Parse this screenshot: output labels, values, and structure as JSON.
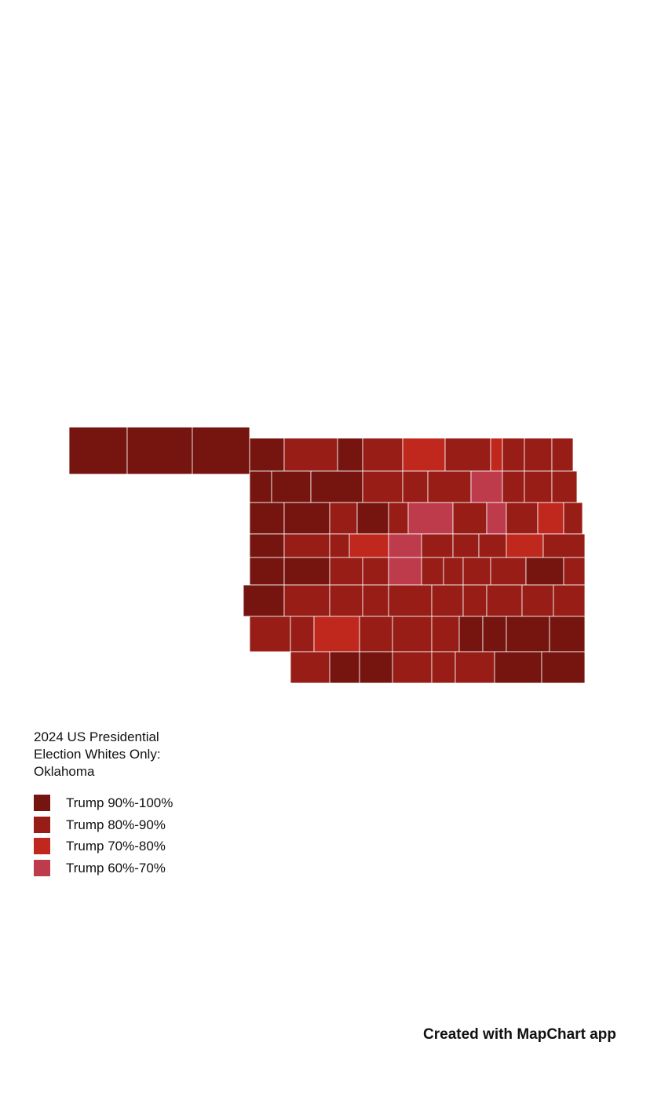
{
  "title": "2024 US Presidential Election Whites Only: Oklahoma",
  "legend": {
    "items": [
      {
        "label": "Trump 90%-100%",
        "color": "#761510"
      },
      {
        "label": "Trump 80%-90%",
        "color": "#971d16"
      },
      {
        "label": "Trump 70%-80%",
        "color": "#c0281e"
      },
      {
        "label": "Trump 60%-70%",
        "color": "#bd3b4b"
      }
    ]
  },
  "footer": "Created with MapChart app"
}
